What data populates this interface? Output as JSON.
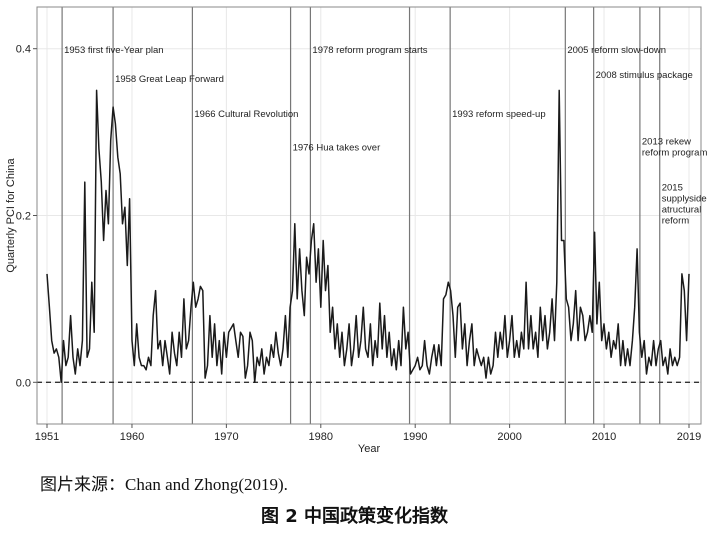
{
  "chart_data": {
    "type": "line",
    "xlabel": "Year",
    "ylabel": "Quarterly PCI for China",
    "xlim": [
      1951,
      2019
    ],
    "ylim": [
      -0.05,
      0.45
    ],
    "x_ticks": [
      1951,
      1960,
      1970,
      1980,
      1990,
      2000,
      2010,
      2019
    ],
    "x_tick_labels": [
      "1951",
      "1960",
      "1970",
      "1980",
      "1990",
      "2000",
      "2010",
      "2019"
    ],
    "y_ticks": [
      0.0,
      0.2,
      0.4
    ],
    "y_tick_labels": [
      "0.0",
      "0.2",
      "0.4"
    ],
    "reference_line": {
      "y": 0.0,
      "style": "dashed"
    },
    "events": [
      {
        "x": 1952.6,
        "label_lines": [
          "1953 first five-Year plan"
        ],
        "label_y": 0.395
      },
      {
        "x": 1958.0,
        "label_lines": [
          "1958 Great Leap Forward"
        ],
        "label_y": 0.36
      },
      {
        "x": 1966.4,
        "label_lines": [
          "1966 Cultural Revolution"
        ],
        "label_y": 0.318
      },
      {
        "x": 1976.8,
        "label_lines": [
          "1976 Hua takes over"
        ],
        "label_y": 0.278
      },
      {
        "x": 1978.9,
        "label_lines": [
          "1978 reform program starts"
        ],
        "label_y": 0.395
      },
      {
        "x": 1989.4,
        "label_lines": [],
        "label_y": 0
      },
      {
        "x": 1993.7,
        "label_lines": [
          "1993 reform speed-up"
        ],
        "label_y": 0.318
      },
      {
        "x": 2005.9,
        "label_lines": [
          "2005 reform slow-down"
        ],
        "label_y": 0.395
      },
      {
        "x": 2008.9,
        "label_lines": [
          "2008 stimulus package"
        ],
        "label_y": 0.365
      },
      {
        "x": 2013.8,
        "label_lines": [
          "2013 rekew",
          "reform program"
        ],
        "label_y": 0.285
      },
      {
        "x": 2015.9,
        "label_lines": [
          "2015",
          "supplyside",
          "atructural",
          "reform"
        ],
        "label_y": 0.23
      }
    ],
    "series": [
      {
        "color": "#1a1a1a",
        "points": [
          [
            1951.0,
            0.13
          ],
          [
            1951.25,
            0.09
          ],
          [
            1951.5,
            0.05
          ],
          [
            1951.75,
            0.035
          ],
          [
            1952.0,
            0.04
          ],
          [
            1952.25,
            0.03
          ],
          [
            1952.5,
            0.0
          ],
          [
            1952.75,
            0.05
          ],
          [
            1953.0,
            0.02
          ],
          [
            1953.25,
            0.03
          ],
          [
            1953.5,
            0.08
          ],
          [
            1953.75,
            0.03
          ],
          [
            1954.0,
            0.01
          ],
          [
            1954.25,
            0.04
          ],
          [
            1954.5,
            0.02
          ],
          [
            1954.75,
            0.05
          ],
          [
            1955.0,
            0.24
          ],
          [
            1955.25,
            0.03
          ],
          [
            1955.5,
            0.04
          ],
          [
            1955.75,
            0.12
          ],
          [
            1956.0,
            0.06
          ],
          [
            1956.25,
            0.35
          ],
          [
            1956.5,
            0.28
          ],
          [
            1956.75,
            0.24
          ],
          [
            1957.0,
            0.17
          ],
          [
            1957.25,
            0.23
          ],
          [
            1957.5,
            0.19
          ],
          [
            1957.75,
            0.29
          ],
          [
            1958.0,
            0.33
          ],
          [
            1958.25,
            0.31
          ],
          [
            1958.5,
            0.27
          ],
          [
            1958.75,
            0.25
          ],
          [
            1959.0,
            0.19
          ],
          [
            1959.25,
            0.21
          ],
          [
            1959.5,
            0.14
          ],
          [
            1959.75,
            0.22
          ],
          [
            1960.0,
            0.05
          ],
          [
            1960.25,
            0.02
          ],
          [
            1960.5,
            0.07
          ],
          [
            1960.75,
            0.03
          ],
          [
            1961.0,
            0.02
          ],
          [
            1961.25,
            0.02
          ],
          [
            1961.5,
            0.015
          ],
          [
            1961.75,
            0.03
          ],
          [
            1962.0,
            0.02
          ],
          [
            1962.25,
            0.08
          ],
          [
            1962.5,
            0.11
          ],
          [
            1962.75,
            0.04
          ],
          [
            1963.0,
            0.05
          ],
          [
            1963.25,
            0.02
          ],
          [
            1963.5,
            0.05
          ],
          [
            1963.75,
            0.03
          ],
          [
            1964.0,
            0.01
          ],
          [
            1964.25,
            0.06
          ],
          [
            1964.5,
            0.035
          ],
          [
            1964.75,
            0.02
          ],
          [
            1965.0,
            0.06
          ],
          [
            1965.25,
            0.03
          ],
          [
            1965.5,
            0.1
          ],
          [
            1965.75,
            0.04
          ],
          [
            1966.0,
            0.05
          ],
          [
            1966.25,
            0.09
          ],
          [
            1966.5,
            0.12
          ],
          [
            1966.75,
            0.09
          ],
          [
            1967.0,
            0.1
          ],
          [
            1967.25,
            0.115
          ],
          [
            1967.5,
            0.11
          ],
          [
            1967.75,
            0.005
          ],
          [
            1968.0,
            0.02
          ],
          [
            1968.25,
            0.08
          ],
          [
            1968.5,
            0.03
          ],
          [
            1968.75,
            0.07
          ],
          [
            1969.0,
            0.02
          ],
          [
            1969.25,
            0.05
          ],
          [
            1969.5,
            0.01
          ],
          [
            1969.75,
            0.06
          ],
          [
            1970.0,
            0.03
          ],
          [
            1970.25,
            0.06
          ],
          [
            1970.5,
            0.065
          ],
          [
            1970.75,
            0.07
          ],
          [
            1971.0,
            0.05
          ],
          [
            1971.25,
            0.03
          ],
          [
            1971.5,
            0.06
          ],
          [
            1971.75,
            0.055
          ],
          [
            1972.0,
            0.005
          ],
          [
            1972.25,
            0.02
          ],
          [
            1972.5,
            0.06
          ],
          [
            1972.75,
            0.05
          ],
          [
            1973.0,
            0.0
          ],
          [
            1973.25,
            0.03
          ],
          [
            1973.5,
            0.02
          ],
          [
            1973.75,
            0.04
          ],
          [
            1974.0,
            0.01
          ],
          [
            1974.25,
            0.03
          ],
          [
            1974.5,
            0.02
          ],
          [
            1974.75,
            0.045
          ],
          [
            1975.0,
            0.03
          ],
          [
            1975.25,
            0.06
          ],
          [
            1975.5,
            0.035
          ],
          [
            1975.75,
            0.02
          ],
          [
            1976.0,
            0.04
          ],
          [
            1976.25,
            0.08
          ],
          [
            1976.5,
            0.03
          ],
          [
            1976.75,
            0.09
          ],
          [
            1977.0,
            0.11
          ],
          [
            1977.25,
            0.19
          ],
          [
            1977.5,
            0.1
          ],
          [
            1977.75,
            0.16
          ],
          [
            1978.0,
            0.11
          ],
          [
            1978.25,
            0.08
          ],
          [
            1978.5,
            0.15
          ],
          [
            1978.75,
            0.13
          ],
          [
            1979.0,
            0.17
          ],
          [
            1979.25,
            0.19
          ],
          [
            1979.5,
            0.12
          ],
          [
            1979.75,
            0.16
          ],
          [
            1980.0,
            0.09
          ],
          [
            1980.25,
            0.17
          ],
          [
            1980.5,
            0.11
          ],
          [
            1980.75,
            0.14
          ],
          [
            1981.0,
            0.06
          ],
          [
            1981.25,
            0.09
          ],
          [
            1981.5,
            0.04
          ],
          [
            1981.75,
            0.07
          ],
          [
            1982.0,
            0.03
          ],
          [
            1982.25,
            0.06
          ],
          [
            1982.5,
            0.02
          ],
          [
            1982.75,
            0.04
          ],
          [
            1983.0,
            0.07
          ],
          [
            1983.25,
            0.02
          ],
          [
            1983.5,
            0.04
          ],
          [
            1983.75,
            0.08
          ],
          [
            1984.0,
            0.03
          ],
          [
            1984.25,
            0.05
          ],
          [
            1984.5,
            0.09
          ],
          [
            1984.75,
            0.04
          ],
          [
            1985.0,
            0.03
          ],
          [
            1985.25,
            0.07
          ],
          [
            1985.5,
            0.02
          ],
          [
            1985.75,
            0.05
          ],
          [
            1986.0,
            0.03
          ],
          [
            1986.25,
            0.095
          ],
          [
            1986.5,
            0.04
          ],
          [
            1986.75,
            0.08
          ],
          [
            1987.0,
            0.03
          ],
          [
            1987.25,
            0.06
          ],
          [
            1987.5,
            0.02
          ],
          [
            1987.75,
            0.04
          ],
          [
            1988.0,
            0.015
          ],
          [
            1988.25,
            0.05
          ],
          [
            1988.5,
            0.02
          ],
          [
            1988.75,
            0.09
          ],
          [
            1989.0,
            0.04
          ],
          [
            1989.25,
            0.06
          ],
          [
            1989.5,
            0.01
          ],
          [
            1989.75,
            0.015
          ],
          [
            1990.0,
            0.02
          ],
          [
            1990.25,
            0.03
          ],
          [
            1990.5,
            0.015
          ],
          [
            1990.75,
            0.02
          ],
          [
            1991.0,
            0.05
          ],
          [
            1991.25,
            0.02
          ],
          [
            1991.5,
            0.01
          ],
          [
            1991.75,
            0.03
          ],
          [
            1992.0,
            0.045
          ],
          [
            1992.25,
            0.02
          ],
          [
            1992.5,
            0.045
          ],
          [
            1992.75,
            0.02
          ],
          [
            1993.0,
            0.1
          ],
          [
            1993.25,
            0.105
          ],
          [
            1993.5,
            0.12
          ],
          [
            1993.75,
            0.11
          ],
          [
            1994.0,
            0.08
          ],
          [
            1994.25,
            0.03
          ],
          [
            1994.5,
            0.09
          ],
          [
            1994.75,
            0.095
          ],
          [
            1995.0,
            0.04
          ],
          [
            1995.25,
            0.07
          ],
          [
            1995.5,
            0.02
          ],
          [
            1995.75,
            0.05
          ],
          [
            1996.0,
            0.07
          ],
          [
            1996.25,
            0.02
          ],
          [
            1996.5,
            0.04
          ],
          [
            1996.75,
            0.03
          ],
          [
            1997.0,
            0.02
          ],
          [
            1997.25,
            0.03
          ],
          [
            1997.5,
            0.005
          ],
          [
            1997.75,
            0.03
          ],
          [
            1998.0,
            0.01
          ],
          [
            1998.25,
            0.02
          ],
          [
            1998.5,
            0.06
          ],
          [
            1998.75,
            0.03
          ],
          [
            1999.0,
            0.06
          ],
          [
            1999.25,
            0.04
          ],
          [
            1999.5,
            0.08
          ],
          [
            1999.75,
            0.03
          ],
          [
            2000.0,
            0.05
          ],
          [
            2000.25,
            0.08
          ],
          [
            2000.5,
            0.03
          ],
          [
            2000.75,
            0.05
          ],
          [
            2001.0,
            0.03
          ],
          [
            2001.25,
            0.06
          ],
          [
            2001.5,
            0.04
          ],
          [
            2001.75,
            0.12
          ],
          [
            2002.0,
            0.04
          ],
          [
            2002.25,
            0.08
          ],
          [
            2002.5,
            0.04
          ],
          [
            2002.75,
            0.06
          ],
          [
            2003.0,
            0.03
          ],
          [
            2003.25,
            0.09
          ],
          [
            2003.5,
            0.05
          ],
          [
            2003.75,
            0.08
          ],
          [
            2004.0,
            0.04
          ],
          [
            2004.25,
            0.06
          ],
          [
            2004.5,
            0.1
          ],
          [
            2004.75,
            0.05
          ],
          [
            2005.0,
            0.12
          ],
          [
            2005.25,
            0.35
          ],
          [
            2005.5,
            0.17
          ],
          [
            2005.75,
            0.17
          ],
          [
            2006.0,
            0.1
          ],
          [
            2006.25,
            0.09
          ],
          [
            2006.5,
            0.05
          ],
          [
            2006.75,
            0.07
          ],
          [
            2007.0,
            0.11
          ],
          [
            2007.25,
            0.05
          ],
          [
            2007.5,
            0.09
          ],
          [
            2007.75,
            0.08
          ],
          [
            2008.0,
            0.05
          ],
          [
            2008.25,
            0.06
          ],
          [
            2008.5,
            0.08
          ],
          [
            2008.75,
            0.06
          ],
          [
            2009.0,
            0.18
          ],
          [
            2009.25,
            0.07
          ],
          [
            2009.5,
            0.12
          ],
          [
            2009.75,
            0.05
          ],
          [
            2010.0,
            0.07
          ],
          [
            2010.25,
            0.04
          ],
          [
            2010.5,
            0.06
          ],
          [
            2010.75,
            0.03
          ],
          [
            2011.0,
            0.05
          ],
          [
            2011.25,
            0.04
          ],
          [
            2011.5,
            0.07
          ],
          [
            2011.75,
            0.02
          ],
          [
            2012.0,
            0.05
          ],
          [
            2012.25,
            0.02
          ],
          [
            2012.5,
            0.04
          ],
          [
            2012.75,
            0.02
          ],
          [
            2013.0,
            0.05
          ],
          [
            2013.25,
            0.09
          ],
          [
            2013.5,
            0.16
          ],
          [
            2013.75,
            0.06
          ],
          [
            2014.0,
            0.03
          ],
          [
            2014.25,
            0.05
          ],
          [
            2014.5,
            0.01
          ],
          [
            2014.75,
            0.03
          ],
          [
            2015.0,
            0.02
          ],
          [
            2015.25,
            0.05
          ],
          [
            2015.5,
            0.02
          ],
          [
            2015.75,
            0.04
          ],
          [
            2016.0,
            0.05
          ],
          [
            2016.25,
            0.02
          ],
          [
            2016.5,
            0.03
          ],
          [
            2016.75,
            0.01
          ],
          [
            2017.0,
            0.04
          ],
          [
            2017.25,
            0.02
          ],
          [
            2017.5,
            0.03
          ],
          [
            2017.75,
            0.02
          ],
          [
            2018.0,
            0.03
          ],
          [
            2018.25,
            0.13
          ],
          [
            2018.5,
            0.11
          ],
          [
            2018.75,
            0.05
          ],
          [
            2019.0,
            0.13
          ]
        ]
      }
    ]
  },
  "source_note": "图片来源：Chan and Zhong(2019).",
  "figure_caption": "图 2   中国政策变化指数"
}
